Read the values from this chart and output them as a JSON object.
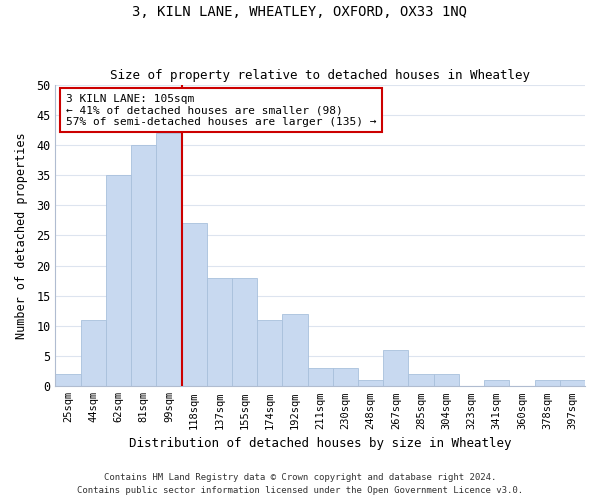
{
  "title_line1": "3, KILN LANE, WHEATLEY, OXFORD, OX33 1NQ",
  "title_line2": "Size of property relative to detached houses in Wheatley",
  "xlabel": "Distribution of detached houses by size in Wheatley",
  "ylabel": "Number of detached properties",
  "bin_labels": [
    "25sqm",
    "44sqm",
    "62sqm",
    "81sqm",
    "99sqm",
    "118sqm",
    "137sqm",
    "155sqm",
    "174sqm",
    "192sqm",
    "211sqm",
    "230sqm",
    "248sqm",
    "267sqm",
    "285sqm",
    "304sqm",
    "323sqm",
    "341sqm",
    "360sqm",
    "378sqm",
    "397sqm"
  ],
  "bar_heights": [
    2,
    11,
    35,
    40,
    42,
    27,
    18,
    18,
    11,
    12,
    3,
    3,
    1,
    6,
    2,
    2,
    0,
    1,
    0,
    1,
    1
  ],
  "bar_color": "#c8d9f0",
  "bar_edge_color": "#a8c0dc",
  "grid_color": "#dde4ef",
  "vline_color": "#cc0000",
  "annotation_line1": "3 KILN LANE: 105sqm",
  "annotation_line2": "← 41% of detached houses are smaller (98)",
  "annotation_line3": "57% of semi-detached houses are larger (135) →",
  "annotation_box_color": "#ffffff",
  "annotation_box_edge": "#cc0000",
  "ylim": [
    0,
    50
  ],
  "yticks": [
    0,
    5,
    10,
    15,
    20,
    25,
    30,
    35,
    40,
    45,
    50
  ],
  "footer_line1": "Contains HM Land Registry data © Crown copyright and database right 2024.",
  "footer_line2": "Contains public sector information licensed under the Open Government Licence v3.0."
}
